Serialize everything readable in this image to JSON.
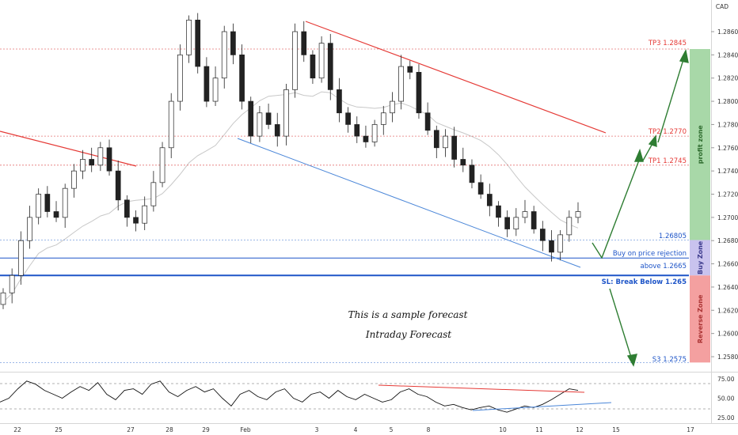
{
  "currency": "CAD",
  "chart_data": [
    {
      "type": "line",
      "title": "",
      "y_unit": "CAD",
      "ylim": [
        1.257,
        1.288
      ],
      "yticks": [
        "1.2860",
        "1.2840",
        "1.2820",
        "1.2800",
        "1.2780",
        "1.2760",
        "1.2740",
        "1.2720",
        "1.2700",
        "1.2680",
        "1.2660",
        "1.2640",
        "1.2620",
        "1.2600",
        "1.2580"
      ],
      "x_ticks": [
        "22",
        "25",
        "27",
        "28",
        "29",
        "Feb",
        "3",
        "4",
        "5",
        "8",
        "10",
        "11",
        "12",
        "15",
        "17"
      ],
      "candles_close_approx": [
        1.2635,
        1.265,
        1.268,
        1.27,
        1.272,
        1.2705,
        1.27,
        1.2725,
        1.274,
        1.275,
        1.2745,
        1.276,
        1.274,
        1.2715,
        1.27,
        1.2695,
        1.271,
        1.273,
        1.276,
        1.28,
        1.284,
        1.287,
        1.283,
        1.28,
        1.282,
        1.286,
        1.284,
        1.28,
        1.277,
        1.279,
        1.278,
        1.277,
        1.281,
        1.286,
        1.284,
        1.282,
        1.285,
        1.281,
        1.279,
        1.278,
        1.277,
        1.2765,
        1.278,
        1.279,
        1.28,
        1.283,
        1.2825,
        1.279,
        1.2775,
        1.276,
        1.277,
        1.275,
        1.2745,
        1.273,
        1.272,
        1.271,
        1.27,
        1.269,
        1.27,
        1.2705,
        1.269,
        1.268,
        1.267,
        1.2685,
        1.27,
        1.2705
      ],
      "levels": [
        {
          "name": "TP3",
          "value": 1.2845,
          "label": "TP3  1.2845"
        },
        {
          "name": "TP2",
          "value": 1.277,
          "label": "TP2  1.2770"
        },
        {
          "name": "TP1",
          "value": 1.2745,
          "label": "TP1  1.2745"
        },
        {
          "name": "entry_top",
          "value": 1.26805,
          "label": "1.26805"
        },
        {
          "name": "entry",
          "value": 1.2665,
          "label": "above 1.2665"
        },
        {
          "name": "SL",
          "value": 1.265,
          "label": "SL: Break Below 1.265"
        },
        {
          "name": "S3",
          "value": 1.2575,
          "label": "S3  1.2575"
        }
      ],
      "annotations": {
        "buy_note": "Buy on price rejection",
        "caption_1": "This is a sample forecast",
        "caption_2": "Intraday Forecast"
      },
      "zones": [
        {
          "label": "profit zone",
          "from": 1.26805,
          "to": 1.2845,
          "color": "#a8d8a8"
        },
        {
          "label": "Buy Zone",
          "from": 1.265,
          "to": 1.26805,
          "color": "#c9c3ee"
        },
        {
          "label": "Reverse Zone",
          "from": 1.2575,
          "to": 1.265,
          "color": "#f4a0a0"
        }
      ]
    },
    {
      "type": "line",
      "title": "",
      "ylim": [
        20,
        85
      ],
      "yticks": [
        "75.00",
        "50.00",
        "25.00"
      ],
      "values_approx": [
        45,
        50,
        62,
        72,
        68,
        60,
        55,
        50,
        58,
        65,
        60,
        70,
        55,
        48,
        60,
        62,
        55,
        68,
        72,
        58,
        52,
        60,
        65,
        58,
        62,
        50,
        40,
        55,
        60,
        52,
        48,
        58,
        62,
        50,
        45,
        55,
        58,
        50,
        60,
        52,
        48,
        55,
        50,
        45,
        48,
        58,
        62,
        55,
        52,
        45,
        40,
        42,
        38,
        35,
        38,
        40,
        35,
        32,
        36,
        40,
        38,
        42,
        48,
        55,
        62,
        60
      ]
    }
  ],
  "colors": {
    "candle_up": "#ffffff",
    "candle_down": "#222222",
    "ma_line": "#c8c8c8",
    "resistance": "#e53935",
    "support": "#4a86d8",
    "level_red": "#e57373",
    "level_blue": "#1e55c8",
    "arrow": "#2e7d32",
    "profit": "#a8d8a8",
    "buy": "#c9c3ee",
    "reverse": "#f4a0a0"
  }
}
